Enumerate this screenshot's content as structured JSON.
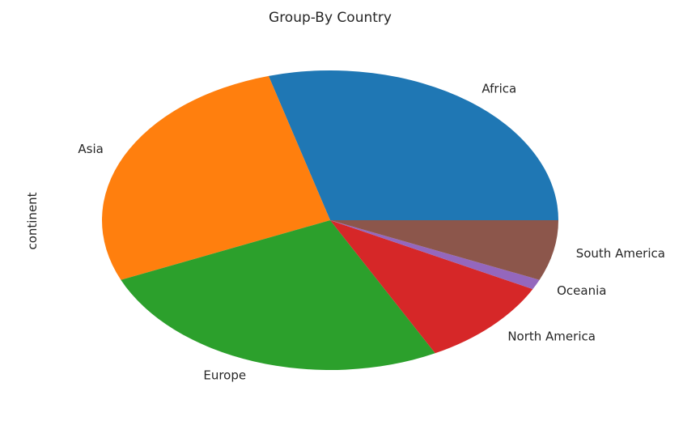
{
  "chart_data": {
    "type": "pie",
    "title": "Group-By Country",
    "ylabel": "continent",
    "categories": [
      "Africa",
      "Asia",
      "Europe",
      "North America",
      "Oceania",
      "South America"
    ],
    "values": [
      54,
      50,
      48,
      18,
      2,
      12
    ],
    "colors": [
      "#1f77b4",
      "#ff7f0e",
      "#2ca02c",
      "#d62728",
      "#9467bd",
      "#8c564b"
    ],
    "start_angle_deg": 0,
    "direction": "counterclockwise"
  }
}
